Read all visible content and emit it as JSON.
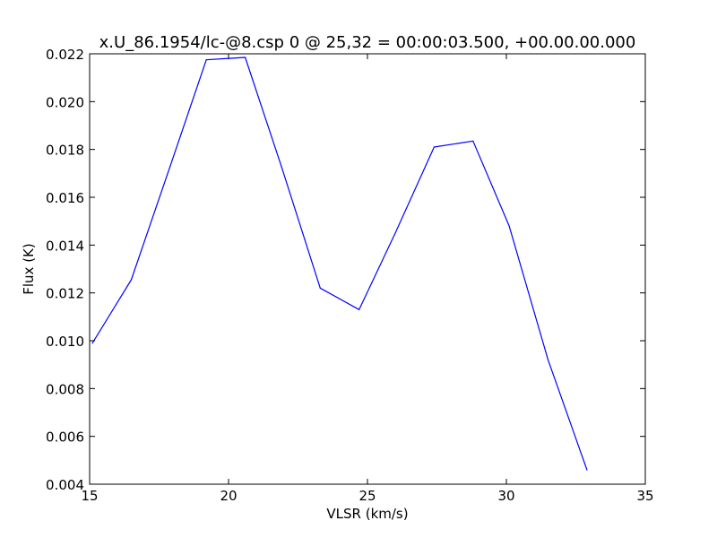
{
  "chart_data": {
    "type": "line",
    "title": "x.U_86.1954/lc-@8.csp 0 @ 25,32 = 00:00:03.500, +00.00.00.000",
    "xlabel": "VLSR (km/s)",
    "ylabel": "Flux (K)",
    "xlim": [
      15,
      35
    ],
    "ylim": [
      0.004,
      0.022
    ],
    "x_ticks": [
      "15",
      "20",
      "25",
      "30",
      "35"
    ],
    "y_ticks": [
      "0.004",
      "0.006",
      "0.008",
      "0.010",
      "0.012",
      "0.014",
      "0.016",
      "0.018",
      "0.020",
      "0.022"
    ],
    "grid": false,
    "series": [
      {
        "color": "#0000ff",
        "x": [
          15.1,
          16.5,
          17.9,
          19.2,
          20.6,
          21.9,
          23.3,
          24.7,
          26.0,
          27.4,
          28.8,
          30.1,
          31.5,
          32.9
        ],
        "y": [
          0.0099,
          0.01255,
          0.0173,
          0.02175,
          0.02185,
          0.0173,
          0.0122,
          0.0113,
          0.0145,
          0.0181,
          0.01835,
          0.0148,
          0.0092,
          0.0046
        ]
      }
    ]
  }
}
